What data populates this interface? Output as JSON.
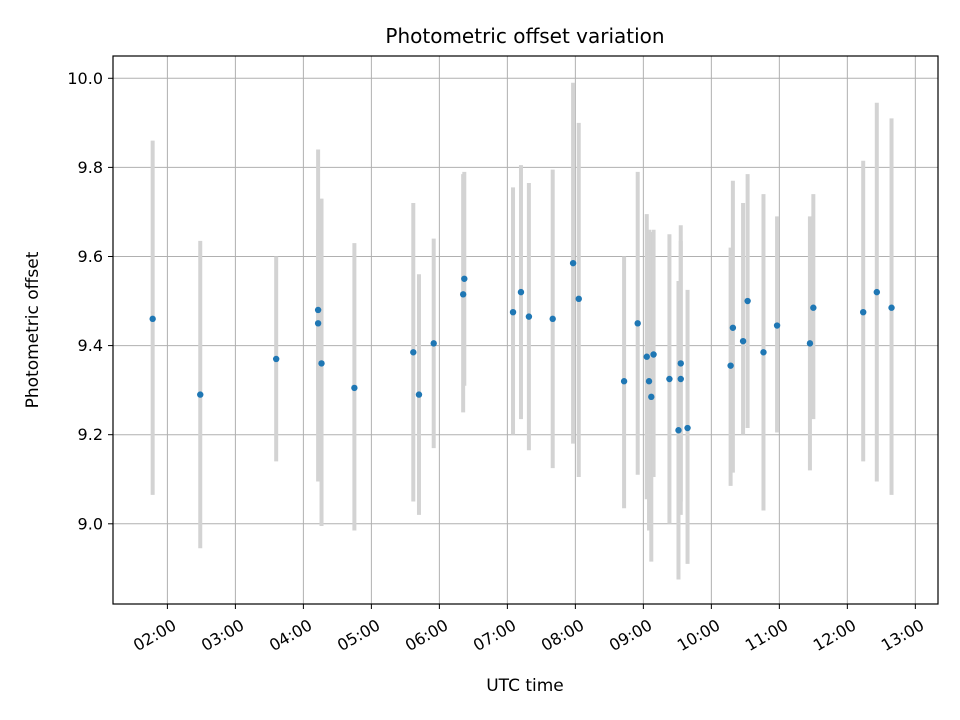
{
  "chart_data": {
    "type": "scatter",
    "title": "Photometric offset variation",
    "xlabel": "UTC time",
    "ylabel": "Photometric offset",
    "xlim": [
      "01:12",
      "13:20"
    ],
    "ylim": [
      8.82,
      10.05
    ],
    "grid": true,
    "x_ticks": [
      "02:00",
      "03:00",
      "04:00",
      "05:00",
      "06:00",
      "07:00",
      "08:00",
      "09:00",
      "10:00",
      "11:00",
      "12:00",
      "13:00"
    ],
    "y_ticks": [
      "9.0",
      "9.2",
      "9.4",
      "9.6",
      "9.8",
      "10.0"
    ],
    "colors": {
      "points": "#1f77b4",
      "errorbars": "#d3d3d3",
      "grid": "#b0b0b0"
    },
    "points": [
      {
        "x": "01:47",
        "y": 9.46,
        "y_low": 9.065,
        "y_high": 9.86
      },
      {
        "x": "02:29",
        "y": 9.29,
        "y_low": 8.945,
        "y_high": 9.635
      },
      {
        "x": "03:36",
        "y": 9.37,
        "y_low": 9.14,
        "y_high": 9.6
      },
      {
        "x": "04:13",
        "y": 9.45,
        "y_low": 9.095,
        "y_high": 9.84
      },
      {
        "x": "04:13",
        "y": 9.48,
        "y_low": 9.3,
        "y_high": 9.66
      },
      {
        "x": "04:16",
        "y": 9.36,
        "y_low": 8.995,
        "y_high": 9.73
      },
      {
        "x": "04:45",
        "y": 9.305,
        "y_low": 8.985,
        "y_high": 9.63
      },
      {
        "x": "05:37",
        "y": 9.385,
        "y_low": 9.05,
        "y_high": 9.72
      },
      {
        "x": "05:42",
        "y": 9.29,
        "y_low": 9.02,
        "y_high": 9.56
      },
      {
        "x": "05:55",
        "y": 9.405,
        "y_low": 9.17,
        "y_high": 9.64
      },
      {
        "x": "06:21",
        "y": 9.515,
        "y_low": 9.25,
        "y_high": 9.785
      },
      {
        "x": "06:22",
        "y": 9.55,
        "y_low": 9.31,
        "y_high": 9.79
      },
      {
        "x": "07:05",
        "y": 9.475,
        "y_low": 9.2,
        "y_high": 9.755
      },
      {
        "x": "07:12",
        "y": 9.52,
        "y_low": 9.235,
        "y_high": 9.805
      },
      {
        "x": "07:19",
        "y": 9.465,
        "y_low": 9.165,
        "y_high": 9.765
      },
      {
        "x": "07:40",
        "y": 9.46,
        "y_low": 9.125,
        "y_high": 9.795
      },
      {
        "x": "07:58",
        "y": 9.585,
        "y_low": 9.18,
        "y_high": 9.99
      },
      {
        "x": "08:03",
        "y": 9.505,
        "y_low": 9.105,
        "y_high": 9.9
      },
      {
        "x": "08:43",
        "y": 9.32,
        "y_low": 9.035,
        "y_high": 9.6
      },
      {
        "x": "08:55",
        "y": 9.45,
        "y_low": 9.11,
        "y_high": 9.79
      },
      {
        "x": "09:03",
        "y": 9.375,
        "y_low": 9.055,
        "y_high": 9.695
      },
      {
        "x": "09:05",
        "y": 9.32,
        "y_low": 8.985,
        "y_high": 9.66
      },
      {
        "x": "09:07",
        "y": 9.285,
        "y_low": 8.915,
        "y_high": 9.655
      },
      {
        "x": "09:09",
        "y": 9.38,
        "y_low": 9.105,
        "y_high": 9.66
      },
      {
        "x": "09:23",
        "y": 9.325,
        "y_low": 9.0,
        "y_high": 9.65
      },
      {
        "x": "09:31",
        "y": 9.21,
        "y_low": 8.875,
        "y_high": 9.545
      },
      {
        "x": "09:33",
        "y": 9.325,
        "y_low": 9.02,
        "y_high": 9.635
      },
      {
        "x": "09:33",
        "y": 9.36,
        "y_low": 9.05,
        "y_high": 9.67
      },
      {
        "x": "09:39",
        "y": 9.215,
        "y_low": 8.91,
        "y_high": 9.525
      },
      {
        "x": "10:17",
        "y": 9.355,
        "y_low": 9.085,
        "y_high": 9.62
      },
      {
        "x": "10:19",
        "y": 9.44,
        "y_low": 9.115,
        "y_high": 9.77
      },
      {
        "x": "10:28",
        "y": 9.41,
        "y_low": 9.2,
        "y_high": 9.72
      },
      {
        "x": "10:32",
        "y": 9.5,
        "y_low": 9.215,
        "y_high": 9.785
      },
      {
        "x": "10:46",
        "y": 9.385,
        "y_low": 9.03,
        "y_high": 9.74
      },
      {
        "x": "10:58",
        "y": 9.445,
        "y_low": 9.205,
        "y_high": 9.69
      },
      {
        "x": "11:27",
        "y": 9.405,
        "y_low": 9.12,
        "y_high": 9.69
      },
      {
        "x": "11:30",
        "y": 9.485,
        "y_low": 9.235,
        "y_high": 9.74
      },
      {
        "x": "12:14",
        "y": 9.475,
        "y_low": 9.14,
        "y_high": 9.815
      },
      {
        "x": "12:26",
        "y": 9.52,
        "y_low": 9.095,
        "y_high": 9.945
      },
      {
        "x": "12:39",
        "y": 9.485,
        "y_low": 9.065,
        "y_high": 9.91
      }
    ]
  }
}
